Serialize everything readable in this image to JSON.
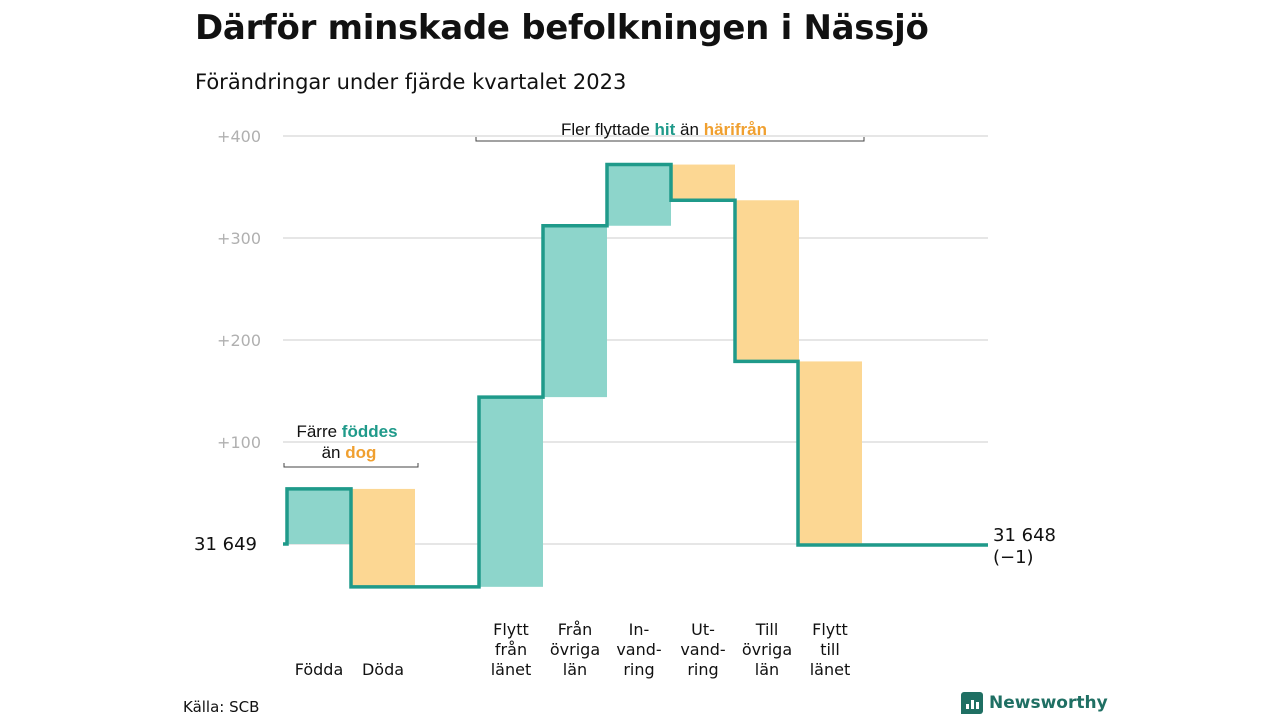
{
  "header": {
    "title": "Därför minskade befolkningen i Nässjö",
    "subtitle": "Förändringar under fjärde kvartalet 2023"
  },
  "footer": {
    "source": "Källa: SCB",
    "brand": "Newsworthy"
  },
  "colors": {
    "increase_fill": "#8dd5cb",
    "decrease_fill": "#fcd793",
    "line": "#1f9a8a",
    "highlight_in": "#1f9a8a",
    "highlight_out": "#f0a030",
    "grid": "#dddddd",
    "tick_text": "#b0b0b0",
    "brand": "#1f6f63"
  },
  "chart_data": {
    "type": "waterfall",
    "start": {
      "label": "31  649",
      "value": 31649
    },
    "end": {
      "label_line1": "31 648",
      "label_line2": "(−1)",
      "value": 31648,
      "change": -1
    },
    "y_ticks": [
      "+100",
      "+200",
      "+300",
      "+400"
    ],
    "ylim": [
      -42,
      410
    ],
    "steps": [
      {
        "label_lines": [
          "Födda"
        ],
        "change": 54,
        "direction": "increase"
      },
      {
        "label_lines": [
          "Döda"
        ],
        "change": -96,
        "direction": "decrease"
      },
      {
        "label_lines": [
          "Flytt",
          "från",
          "länet"
        ],
        "change": 186,
        "direction": "increase"
      },
      {
        "label_lines": [
          "Från",
          "övriga",
          "län"
        ],
        "change": 168,
        "direction": "increase"
      },
      {
        "label_lines": [
          "In-",
          "vand-",
          "ring"
        ],
        "change": 60,
        "direction": "increase"
      },
      {
        "label_lines": [
          "Ut-",
          "vand-",
          "ring"
        ],
        "change": -35,
        "direction": "decrease"
      },
      {
        "label_lines": [
          "Till",
          "övriga",
          "län"
        ],
        "change": -158,
        "direction": "decrease"
      },
      {
        "label_lines": [
          "Flytt",
          "till",
          "länet"
        ],
        "change": -180,
        "direction": "decrease"
      }
    ],
    "annotations": [
      {
        "line1_parts": [
          "Färre ",
          "föddes"
        ],
        "line2_parts": [
          "än ",
          "dog"
        ],
        "spans_steps": [
          0,
          1
        ]
      },
      {
        "parts": [
          "Fler flyttade ",
          "hit",
          " än ",
          "härifrån"
        ],
        "spans_steps": [
          2,
          7
        ]
      }
    ]
  }
}
